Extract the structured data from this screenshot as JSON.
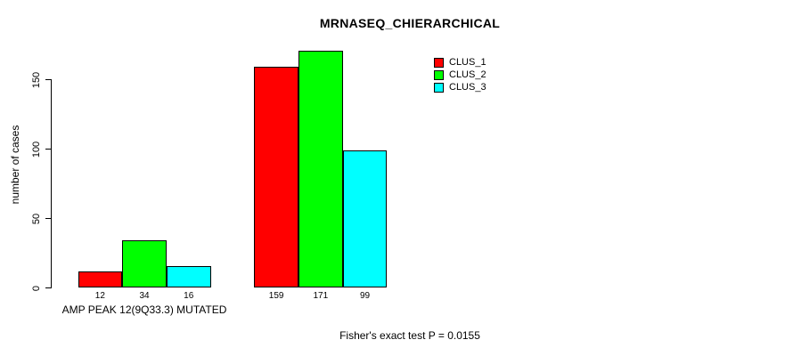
{
  "chart_data": {
    "type": "bar",
    "title": "MRNASEQ_CHIERARCHICAL",
    "ylabel": "number of cases",
    "xlabel": "",
    "ylim": [
      0,
      150
    ],
    "y_ticks": [
      0,
      50,
      100,
      150
    ],
    "grid": false,
    "bar_value_labels": true,
    "legend_position": "top-right",
    "categories": [
      "AMP PEAK 12(9Q33.3) MUTATED",
      ""
    ],
    "series": [
      {
        "name": "CLUS_1",
        "color": "#FF0000",
        "values": [
          12,
          159
        ]
      },
      {
        "name": "CLUS_2",
        "color": "#00FF00",
        "values": [
          34,
          171
        ]
      },
      {
        "name": "CLUS_3",
        "color": "#00FFFF",
        "values": [
          16,
          99
        ]
      }
    ],
    "annotation": "Fisher's exact test P = 0.0155"
  }
}
